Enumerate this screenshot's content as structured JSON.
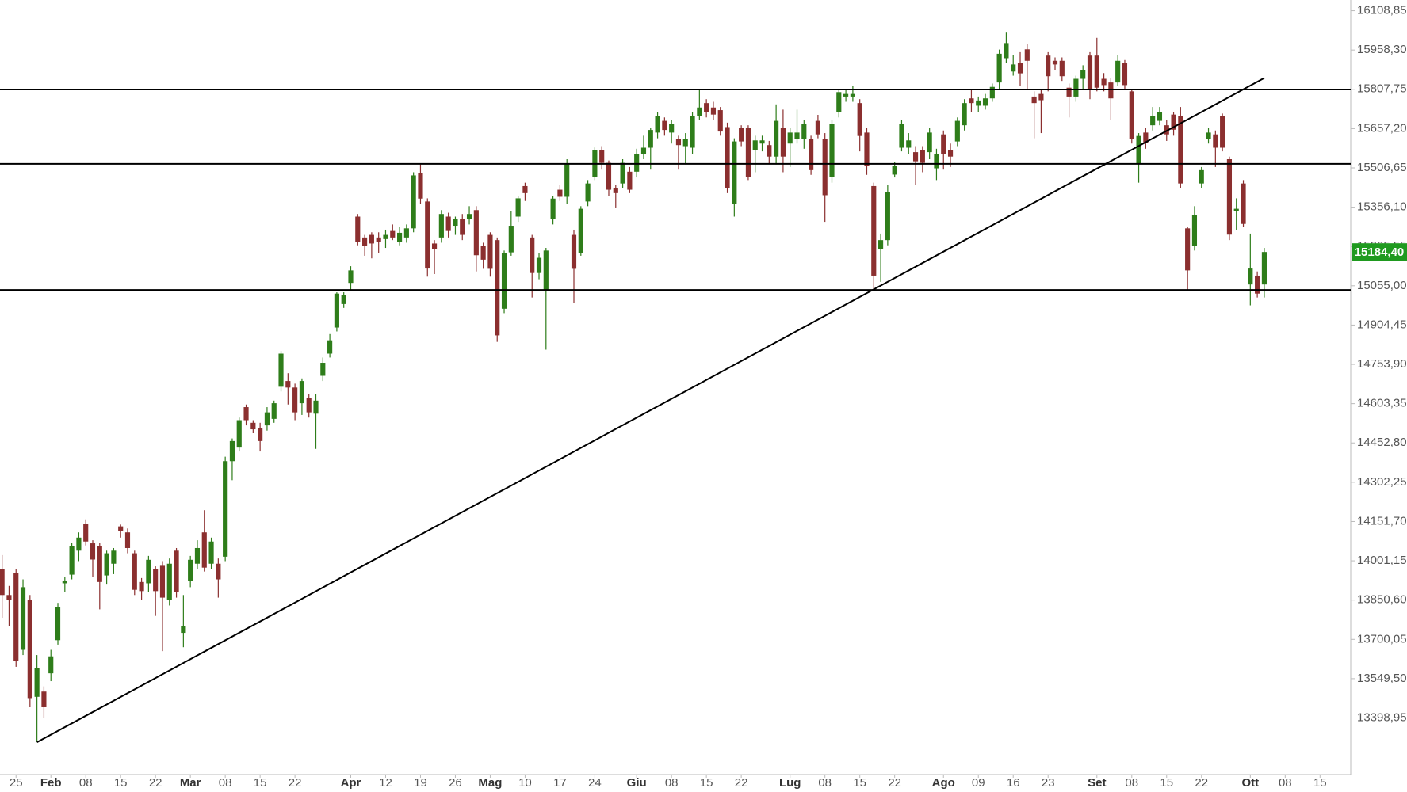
{
  "chart_data": {
    "type": "candlestick",
    "up_color": "#2e7d1a",
    "down_color": "#8b2f2f",
    "level_color": "#000000",
    "open": [
      13970,
      13870,
      13955,
      13660,
      13852,
      13480,
      13500,
      13570,
      13697,
      13915,
      13948,
      14040,
      14143,
      14068,
      14058,
      13945,
      13990,
      14133,
      14110,
      14030,
      13920,
      13915,
      13970,
      13982,
      13850,
      14040,
      13725,
      13925,
      13990,
      14110,
      13990,
      13990,
      14017,
      14383,
      14435,
      14590,
      14530,
      14510,
      14520,
      14545,
      14668,
      14690,
      14665,
      14605,
      14625,
      14565,
      14710,
      14795,
      14895,
      14985,
      15066,
      15320,
      15240,
      15250,
      15240,
      15234,
      15265,
      15224,
      15240,
      15275,
      15488,
      15378,
      15217,
      15240,
      15320,
      15285,
      15310,
      15310,
      15345,
      15207,
      15250,
      15230,
      14967,
      15183,
      15320,
      15437,
      15240,
      15104,
      15035,
      15310,
      15423,
      15396,
      15250,
      15180,
      15378,
      15471,
      15574,
      15526,
      15430,
      15447,
      15492,
      15492,
      15560,
      15584,
      15642,
      15687,
      15642,
      15618,
      15590,
      15584,
      15704,
      15755,
      15738,
      15728,
      15663,
      15368,
      15660,
      15660,
      15574,
      15600,
      15594,
      15550,
      15660,
      15600,
      15618,
      15618,
      15618,
      15687,
      15618,
      15471,
      15721,
      15780,
      15780,
      15755,
      15642,
      15437,
      15196,
      15230,
      15481,
      15584,
      15584,
      15567,
      15574,
      15567,
      15505,
      15635,
      15574,
      15608,
      15670,
      15773,
      15745,
      15745,
      15773,
      15834,
      15927,
      15876,
      15910,
      15961,
      15780,
      15790,
      15937,
      15917,
      15917,
      15814,
      15780,
      15848,
      15937,
      15937,
      15848,
      15834,
      15834,
      15910,
      15800,
      15522,
      15642,
      15670,
      15687,
      15670,
      15711,
      15704,
      15275,
      15207,
      15447,
      15618,
      15635,
      15704,
      15540,
      15340,
      15447,
      15060,
      15094,
      15060
    ],
    "high": [
      14023,
      13905,
      13970,
      13930,
      13870,
      13640,
      13520,
      13660,
      13840,
      13940,
      14070,
      14110,
      14160,
      14080,
      14070,
      14040,
      14050,
      14140,
      14125,
      14040,
      13935,
      14020,
      13980,
      14000,
      14010,
      14050,
      13870,
      14020,
      14080,
      14195,
      14090,
      14010,
      14400,
      14470,
      14550,
      14600,
      14540,
      14530,
      14590,
      14615,
      14805,
      14720,
      14680,
      14700,
      14640,
      14640,
      14780,
      14870,
      15030,
      15030,
      15130,
      15330,
      15250,
      15260,
      15260,
      15270,
      15290,
      15280,
      15290,
      15490,
      15520,
      15390,
      15230,
      15345,
      15335,
      15320,
      15330,
      15360,
      15360,
      15220,
      15260,
      15240,
      15190,
      15340,
      15400,
      15450,
      15250,
      15180,
      15200,
      15400,
      15440,
      15540,
      15270,
      15360,
      15460,
      15585,
      15590,
      15535,
      15440,
      15540,
      15510,
      15580,
      15630,
      15660,
      15720,
      15700,
      15690,
      15630,
      15640,
      15720,
      15810,
      15770,
      15760,
      15740,
      15680,
      15620,
      15670,
      15670,
      15630,
      15630,
      15610,
      15750,
      15730,
      15660,
      15730,
      15690,
      15630,
      15710,
      15640,
      15690,
      15810,
      15810,
      15820,
      15770,
      15660,
      15450,
      15255,
      15440,
      15530,
      15690,
      15640,
      15590,
      15590,
      15660,
      15580,
      15650,
      15600,
      15700,
      15770,
      15810,
      15780,
      15790,
      15830,
      15960,
      16025,
      15940,
      15950,
      15980,
      15800,
      15810,
      15950,
      15930,
      15930,
      15830,
      15860,
      15900,
      15950,
      16005,
      15870,
      15850,
      15940,
      15920,
      15810,
      15640,
      15660,
      15740,
      15740,
      15690,
      15720,
      15740,
      15280,
      15360,
      15510,
      15660,
      15650,
      15715,
      15550,
      15390,
      15460,
      15255,
      15110,
      15200
    ],
    "low": [
      13783,
      13750,
      13595,
      13640,
      13440,
      13307,
      13400,
      13540,
      13680,
      13880,
      13930,
      14000,
      14060,
      13940,
      13815,
      13910,
      13950,
      14090,
      14030,
      13870,
      13850,
      13880,
      13790,
      13655,
      13830,
      13860,
      13670,
      13900,
      13970,
      13960,
      13970,
      13860,
      14000,
      14310,
      14420,
      14520,
      14490,
      14420,
      14500,
      14530,
      14650,
      14600,
      14540,
      14560,
      14550,
      14430,
      14690,
      14780,
      14880,
      14970,
      15040,
      15210,
      15170,
      15160,
      15180,
      15200,
      15230,
      15210,
      15220,
      15260,
      15370,
      15090,
      15100,
      15220,
      15240,
      15250,
      15230,
      15290,
      15110,
      15120,
      15090,
      14840,
      14950,
      15170,
      15300,
      15380,
      15010,
      15080,
      14810,
      15290,
      15380,
      15370,
      14990,
      15170,
      15360,
      15460,
      15500,
      15400,
      15355,
      15430,
      15410,
      15470,
      15540,
      15500,
      15620,
      15630,
      15600,
      15500,
      15520,
      15560,
      15690,
      15700,
      15690,
      15630,
      15410,
      15320,
      15590,
      15460,
      15490,
      15570,
      15520,
      15520,
      15490,
      15510,
      15600,
      15580,
      15480,
      15620,
      15300,
      15450,
      15700,
      15760,
      15760,
      15570,
      15480,
      15040,
      15070,
      15210,
      15470,
      15570,
      15560,
      15440,
      15490,
      15540,
      15460,
      15500,
      15510,
      15590,
      15650,
      15720,
      15720,
      15730,
      15760,
      15810,
      15910,
      15860,
      15820,
      15810,
      15620,
      15640,
      15800,
      15880,
      15840,
      15700,
      15760,
      15810,
      15770,
      15800,
      15800,
      15690,
      15820,
      15810,
      15600,
      15450,
      15580,
      15650,
      15670,
      15610,
      15630,
      15430,
      15040,
      15190,
      15430,
      15600,
      15510,
      15570,
      15230,
      15270,
      15280,
      14980,
      15010,
      15010
    ],
    "close": [
      13870,
      13850,
      13619,
      13900,
      13475,
      13590,
      13440,
      13635,
      13825,
      13925,
      14058,
      14090,
      14075,
      14006,
      13920,
      14030,
      14040,
      14115,
      14050,
      13890,
      13885,
      14005,
      13885,
      13860,
      13990,
      13880,
      13750,
      14005,
      14050,
      13975,
      14075,
      13930,
      14383,
      14460,
      14540,
      14540,
      14505,
      14460,
      14570,
      14605,
      14795,
      14665,
      14570,
      14690,
      14570,
      14615,
      14760,
      14846,
      15025,
      15018,
      15114,
      15224,
      15207,
      15217,
      15224,
      15250,
      15240,
      15258,
      15275,
      15478,
      15389,
      15121,
      15196,
      15330,
      15265,
      15310,
      15250,
      15330,
      15172,
      15155,
      15120,
      14865,
      15180,
      15285,
      15390,
      15410,
      15104,
      15162,
      15190,
      15389,
      15396,
      15522,
      15120,
      15350,
      15447,
      15574,
      15526,
      15423,
      15410,
      15526,
      15423,
      15560,
      15584,
      15652,
      15704,
      15652,
      15676,
      15594,
      15618,
      15704,
      15738,
      15721,
      15711,
      15646,
      15430,
      15608,
      15608,
      15471,
      15612,
      15612,
      15550,
      15687,
      15550,
      15642,
      15642,
      15676,
      15498,
      15635,
      15402,
      15676,
      15797,
      15790,
      15790,
      15629,
      15515,
      15094,
      15230,
      15413,
      15515,
      15676,
      15612,
      15532,
      15526,
      15642,
      15560,
      15560,
      15550,
      15687,
      15755,
      15755,
      15765,
      15773,
      15817,
      15944,
      15985,
      15903,
      15869,
      15917,
      15755,
      15766,
      15858,
      15903,
      15858,
      15780,
      15848,
      15882,
      15807,
      15814,
      15824,
      15773,
      15917,
      15824,
      15618,
      15629,
      15601,
      15704,
      15721,
      15635,
      15653,
      15447,
      15114,
      15327,
      15498,
      15642,
      15584,
      15584,
      15251,
      15350,
      15292,
      15121,
      15025,
      15184.4
    ],
    "xlim": [
      -0.3,
      193.4
    ],
    "xticks": [
      {
        "value": 2,
        "label": "25"
      },
      {
        "value": 7,
        "label": "Feb"
      },
      {
        "value": 12,
        "label": "08"
      },
      {
        "value": 17,
        "label": "15"
      },
      {
        "value": 22,
        "label": "22"
      },
      {
        "value": 27,
        "label": "Mar"
      },
      {
        "value": 32,
        "label": "08"
      },
      {
        "value": 37,
        "label": "15"
      },
      {
        "value": 42,
        "label": "22"
      },
      {
        "value": 50,
        "label": "Apr"
      },
      {
        "value": 55,
        "label": "12"
      },
      {
        "value": 60,
        "label": "19"
      },
      {
        "value": 65,
        "label": "26"
      },
      {
        "value": 70,
        "label": "Mag"
      },
      {
        "value": 75,
        "label": "10"
      },
      {
        "value": 80,
        "label": "17"
      },
      {
        "value": 85,
        "label": "24"
      },
      {
        "value": 91,
        "label": "Giu"
      },
      {
        "value": 96,
        "label": "08"
      },
      {
        "value": 101,
        "label": "15"
      },
      {
        "value": 106,
        "label": "22"
      },
      {
        "value": 113,
        "label": "Lug"
      },
      {
        "value": 118,
        "label": "08"
      },
      {
        "value": 123,
        "label": "15"
      },
      {
        "value": 128,
        "label": "22"
      },
      {
        "value": 135,
        "label": "Ago"
      },
      {
        "value": 140,
        "label": "09"
      },
      {
        "value": 145,
        "label": "16"
      },
      {
        "value": 150,
        "label": "23"
      },
      {
        "value": 157,
        "label": "Set"
      },
      {
        "value": 162,
        "label": "08"
      },
      {
        "value": 167,
        "label": "15"
      },
      {
        "value": 172,
        "label": "22"
      },
      {
        "value": 179,
        "label": "Ott"
      },
      {
        "value": 184,
        "label": "08"
      },
      {
        "value": 189,
        "label": "15"
      }
    ],
    "ylim": [
      13182,
      16150
    ],
    "yticks": [
      {
        "value": 16108.85,
        "label": "16108,85"
      },
      {
        "value": 15958.3,
        "label": "15958,30"
      },
      {
        "value": 15807.75,
        "label": "15807,75"
      },
      {
        "value": 15657.2,
        "label": "15657,20"
      },
      {
        "value": 15506.65,
        "label": "15506,65"
      },
      {
        "value": 15356.1,
        "label": "15356,10"
      },
      {
        "value": 15205.55,
        "label": "15205,55"
      },
      {
        "value": 15055,
        "label": "15055,00"
      },
      {
        "value": 14904.45,
        "label": "14904,45"
      },
      {
        "value": 14753.9,
        "label": "14753,90"
      },
      {
        "value": 14603.35,
        "label": "14603,35"
      },
      {
        "value": 14452.8,
        "label": "14452,80"
      },
      {
        "value": 14302.25,
        "label": "14302,25"
      },
      {
        "value": 14151.7,
        "label": "14151,70"
      },
      {
        "value": 14001.15,
        "label": "14001,15"
      },
      {
        "value": 13850.6,
        "label": "13850,60"
      },
      {
        "value": 13700.05,
        "label": "13700,05"
      },
      {
        "value": 13549.5,
        "label": "13549,50"
      },
      {
        "value": 13398.95,
        "label": "13398,95"
      }
    ],
    "levels": [
      15807,
      15522,
      15039
    ],
    "trendline": {
      "x": [
        5,
        181
      ],
      "y": [
        13306,
        15851
      ]
    },
    "last_price": {
      "value": 15184.4,
      "label": "15184,40",
      "color": "#1f9a1f"
    }
  }
}
